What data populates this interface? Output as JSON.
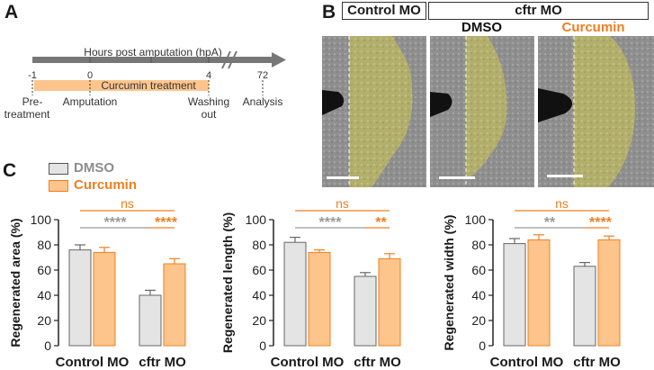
{
  "panels": {
    "a": "A",
    "b": "B",
    "c": "C"
  },
  "timeline": {
    "axis_label": "Hours post amputation (hpA)",
    "ticks": [
      "-1",
      "0",
      "4",
      "72"
    ],
    "treatment_label": "Curcumin treatment",
    "events": [
      "Pre-",
      "treatment",
      "Amputation",
      "Washing",
      "out",
      "Analysis"
    ]
  },
  "images": {
    "header_control": "Control MO",
    "header_cftr": "cftr MO",
    "sub_dmso": "DMSO",
    "sub_curcumin": "Curcumin"
  },
  "colors": {
    "dmso": "#e4e4e4",
    "curcumin": "#fdc58c",
    "accent": "#f07f1f",
    "grey_sig": "#9a9a9a"
  },
  "legend": {
    "dmso": "DMSO",
    "curcumin": "Curcumin"
  },
  "chart_data": [
    {
      "type": "bar",
      "ylabel": "Regenerated area (%)",
      "categories": [
        "Control MO",
        "cftr MO"
      ],
      "ylim": [
        0,
        100
      ],
      "yticks": [
        "0",
        "20",
        "40",
        "60",
        "80",
        "100"
      ],
      "series": [
        {
          "name": "DMSO",
          "values": [
            76,
            40
          ],
          "errors": [
            4,
            4
          ]
        },
        {
          "name": "Curcumin",
          "values": [
            74,
            65
          ],
          "errors": [
            4,
            4
          ]
        }
      ],
      "significance": {
        "top": "ns",
        "left": "****",
        "right": "****"
      }
    },
    {
      "type": "bar",
      "ylabel": "Regenerated length (%)",
      "categories": [
        "Control MO",
        "cftr MO"
      ],
      "ylim": [
        0,
        100
      ],
      "yticks": [
        "0",
        "20",
        "40",
        "60",
        "80",
        "100"
      ],
      "series": [
        {
          "name": "DMSO",
          "values": [
            82,
            55
          ],
          "errors": [
            4,
            3
          ]
        },
        {
          "name": "Curcumin",
          "values": [
            74,
            69
          ],
          "errors": [
            2,
            4
          ]
        }
      ],
      "significance": {
        "top": "ns",
        "left": "****",
        "right": "**"
      }
    },
    {
      "type": "bar",
      "ylabel": "Regenerated width (%)",
      "categories": [
        "Control MO",
        "cftr MO"
      ],
      "ylim": [
        0,
        100
      ],
      "yticks": [
        "0",
        "20",
        "40",
        "60",
        "80",
        "100"
      ],
      "series": [
        {
          "name": "DMSO",
          "values": [
            81,
            63
          ],
          "errors": [
            4,
            3
          ]
        },
        {
          "name": "Curcumin",
          "values": [
            84,
            84
          ],
          "errors": [
            4,
            3
          ]
        }
      ],
      "significance": {
        "top": "ns",
        "left": "**",
        "right": "****"
      }
    }
  ]
}
